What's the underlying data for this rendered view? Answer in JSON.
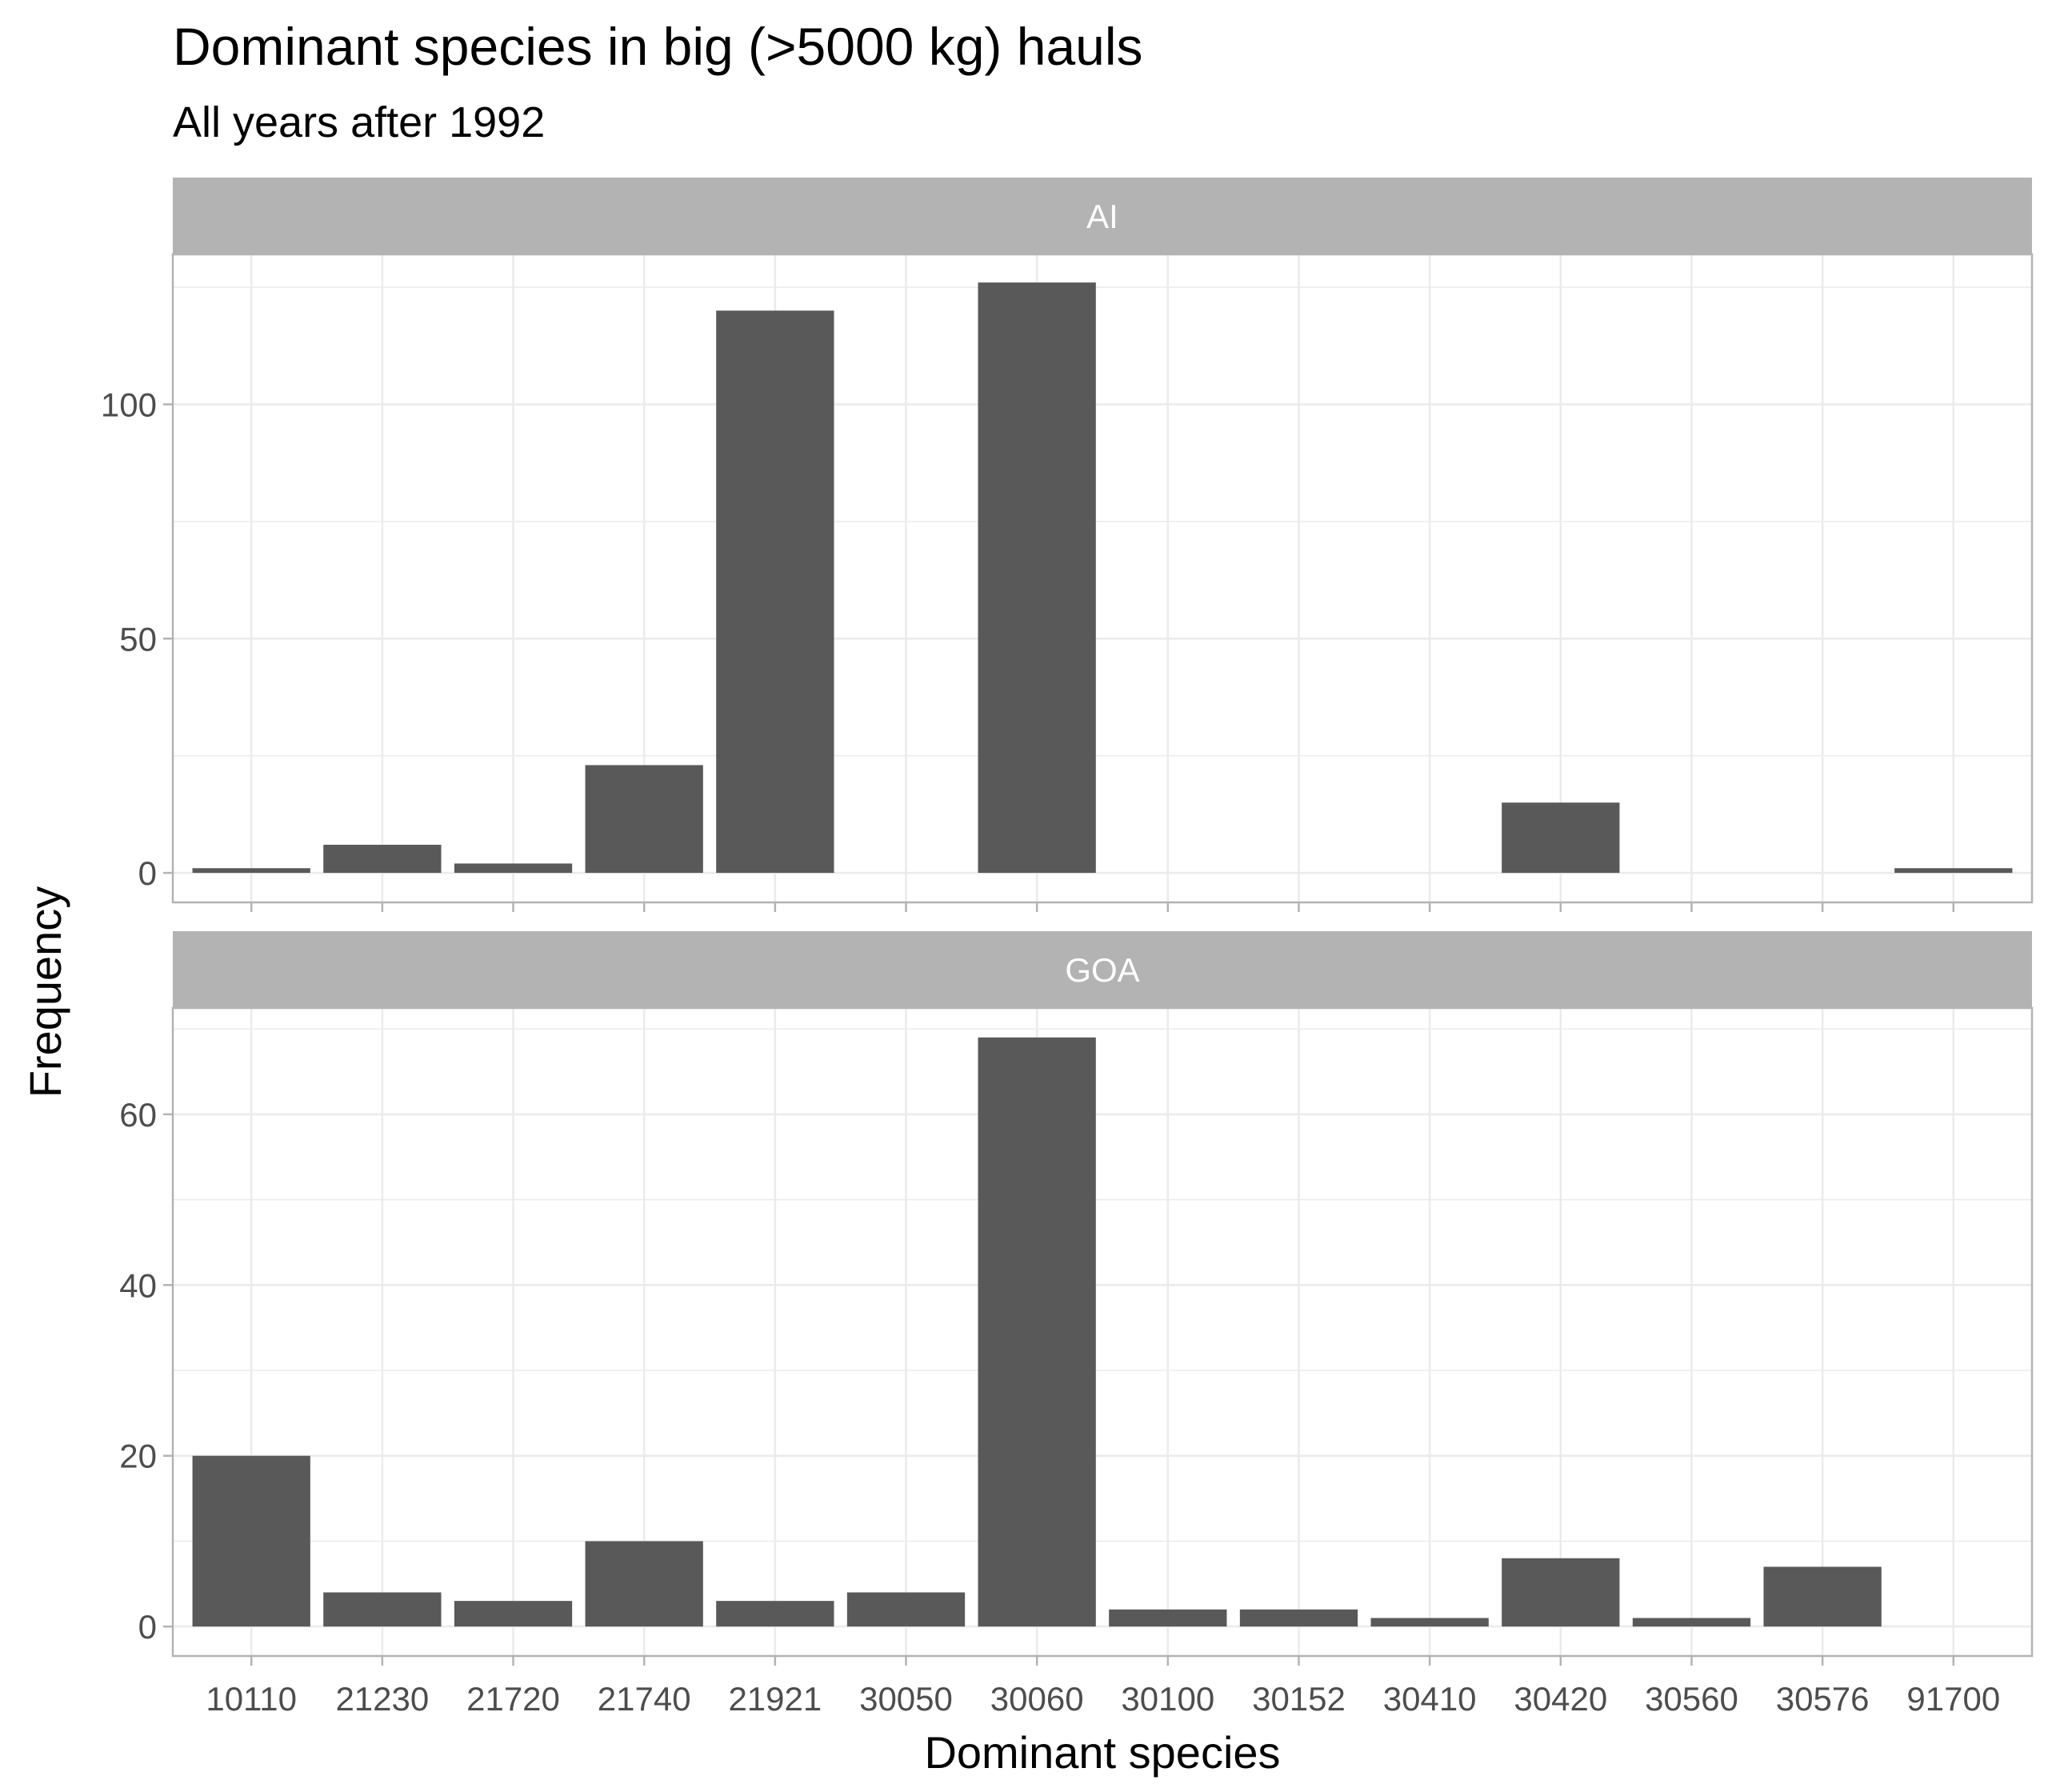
{
  "chart_data": {
    "type": "bar",
    "title": "Dominant species in big (>5000 kg) hauls",
    "subtitle": "All years after 1992",
    "xlabel": "Dominant species",
    "ylabel": "Frequency",
    "categories": [
      "10110",
      "21230",
      "21720",
      "21740",
      "21921",
      "30050",
      "30060",
      "30100",
      "30152",
      "30410",
      "30420",
      "30560",
      "30576",
      "91700"
    ],
    "grid": true,
    "colors": {
      "bar": "#595959",
      "strip": "#b3b3b3",
      "grid": "#ebebeb",
      "panel_border": "#b3b3b3"
    },
    "panels": [
      {
        "name": "AI",
        "ylim": [
          -6.3,
          132
        ],
        "yticks": [
          0,
          50,
          100
        ],
        "values": [
          1,
          6,
          2,
          23,
          120,
          0,
          126,
          0,
          0,
          0,
          15,
          0,
          0,
          1
        ]
      },
      {
        "name": "GOA",
        "ylim": [
          -3.45,
          72.45
        ],
        "yticks": [
          0,
          20,
          40,
          60
        ],
        "values": [
          20,
          4,
          3,
          10,
          3,
          4,
          69,
          2,
          2,
          1,
          8,
          1,
          7,
          0
        ]
      }
    ]
  }
}
